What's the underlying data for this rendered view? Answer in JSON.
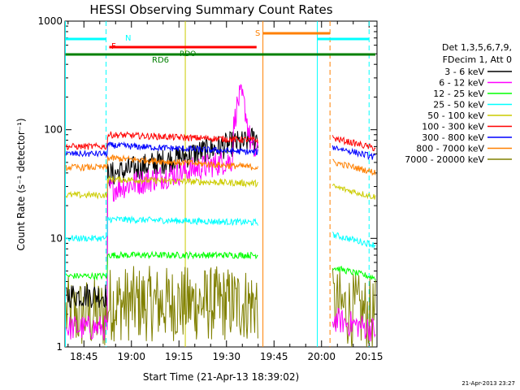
{
  "chart_data": {
    "type": "line",
    "title": "HESSI Observing Summary Count Rates",
    "xlabel": "Start Time (21-Apr-13 18:39:02)",
    "ylabel": "Count Rate (s⁻¹ detector⁻¹)",
    "yscale": "log",
    "ylim": [
      1,
      1000
    ],
    "xlim": [
      "18:39:02",
      "20:17:30"
    ],
    "x_ticks": [
      "18:45",
      "19:00",
      "19:15",
      "19:30",
      "19:45",
      "20:00",
      "20:15"
    ],
    "y_ticks": [
      "1",
      "10",
      "100",
      "1000"
    ],
    "timestamp": "21-Apr-2013 23:27",
    "legend_header": [
      "Det 1,3,5,6,7,9,",
      "FDecim 1, Att 0"
    ],
    "legend_position": "right",
    "flag_labels": {
      "N": "N",
      "F": "F",
      "S": "S",
      "RDO": "RDO",
      "RD6": "RD6"
    },
    "series": [
      {
        "name": "3 - 6 keV",
        "color": "#000000",
        "pre": 3.0,
        "mid_start": 38,
        "mid_end": 85,
        "peak": 75,
        "post": null
      },
      {
        "name": "6 - 12 keV",
        "color": "#ff00ff",
        "pre": 1.5,
        "mid_start": 28,
        "mid_end": 60,
        "peak": 200,
        "post": 1.5
      },
      {
        "name": "12 - 25 keV",
        "color": "#00ff00",
        "pre": 4.5,
        "mid_start": 7,
        "mid_end": 7,
        "peak": 8,
        "post": 4.5
      },
      {
        "name": "25 - 50 keV",
        "color": "#00ffff",
        "pre": 10,
        "mid_start": 15,
        "mid_end": 14,
        "peak": 14,
        "post": 9
      },
      {
        "name": "50 - 100 keV",
        "color": "#cccc00",
        "pre": 25,
        "mid_start": 35,
        "mid_end": 32,
        "peak": 32,
        "post": 25
      },
      {
        "name": "100 - 300 keV",
        "color": "#ff0000",
        "pre": 70,
        "mid_start": 90,
        "mid_end": 80,
        "peak": 80,
        "post": 70
      },
      {
        "name": "300 - 800 keV",
        "color": "#0000ff",
        "pre": 60,
        "mid_start": 72,
        "mid_end": 62,
        "peak": 62,
        "post": 58
      },
      {
        "name": "800 - 7000 keV",
        "color": "#ff8000",
        "pre": 45,
        "mid_start": 55,
        "mid_end": 45,
        "peak": 45,
        "post": 42
      },
      {
        "name": "7000 - 20000 keV",
        "color": "#808000",
        "pre": 2,
        "mid_start": 2.5,
        "mid_end": 2.5,
        "peak": 2.5,
        "post": 2
      }
    ],
    "data_gap": [
      "19:40",
      "20:03"
    ],
    "colors": {
      "night_flag": "#00ffff",
      "flare_flag": "#ff0000",
      "saa_flag": "#ff8000",
      "rd6_flag": "#008000"
    }
  }
}
